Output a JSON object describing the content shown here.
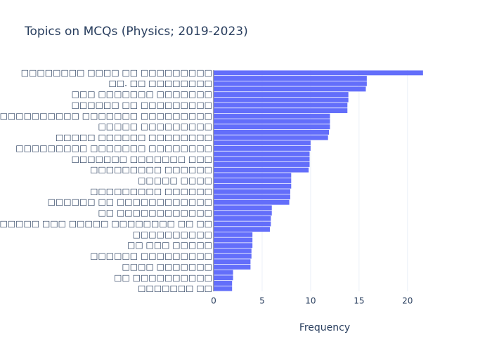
{
  "chart_data": {
    "type": "bar",
    "orientation": "horizontal",
    "title": "Topics on MCQs (Physics; 2019-2023)",
    "xlabel": "Frequency",
    "color": "#636efa",
    "categories": [
      "□□□□□□□□ □□□□ □□ □□□□□□□□□",
      null,
      "□□. □□ □□□□□□□□",
      null,
      "□□□ □□□□□□□ □□□□□□□",
      null,
      "□□□□□□ □□ □□□□□□□□□",
      null,
      "□□□□□□□□□□ □□□□□□□ □□□□□□□□□",
      null,
      "□□□□□ □□□□□□□□□",
      null,
      "□□□□□ □□□□□□ □□□□□□□□",
      null,
      "□□□□□□□□□ □□□□□□□ □□□□□□□□",
      null,
      "□□□□□□□ □□□□□□□ □□□",
      null,
      "□□□□□□□□□ □□□□□□",
      null,
      "□□□□□ □□□□",
      null,
      "□□□□□□□□□ □□□□□□",
      null,
      "□□□□□□ □□ □□□□□□□□□□□□",
      null,
      "□□ □□□□□□□□□□□□",
      null,
      "□□□□□ □□□□□□□ □□ □□□□□□□□□ □□□ □□□□□ □□□□□□□□ □□ □□",
      null,
      "□□□□□□□□□□",
      null,
      "□□ □□□ □□□□□",
      null,
      "□□□□□□ □□□□□□□□□",
      null,
      "□□□□ □□□□□□□",
      null,
      "□□ □□□□□□□□□□",
      null,
      "□□□□□□□ □□"
    ],
    "values": [
      21.6,
      15.8,
      15.8,
      15.7,
      13.9,
      13.9,
      13.8,
      13.8,
      12,
      12,
      12,
      11.9,
      11.8,
      10,
      10,
      9.9,
      9.9,
      9.9,
      9.8,
      8,
      8,
      8,
      7.9,
      7.9,
      7.8,
      6,
      6,
      5.9,
      5.9,
      5.8,
      4,
      4,
      4,
      3.9,
      3.9,
      3.8,
      3.8,
      2,
      2,
      1.9,
      1.9
    ],
    "xlim": [
      0,
      22.7
    ],
    "xticks": [
      0,
      5,
      10,
      15,
      20
    ],
    "grid": true
  }
}
